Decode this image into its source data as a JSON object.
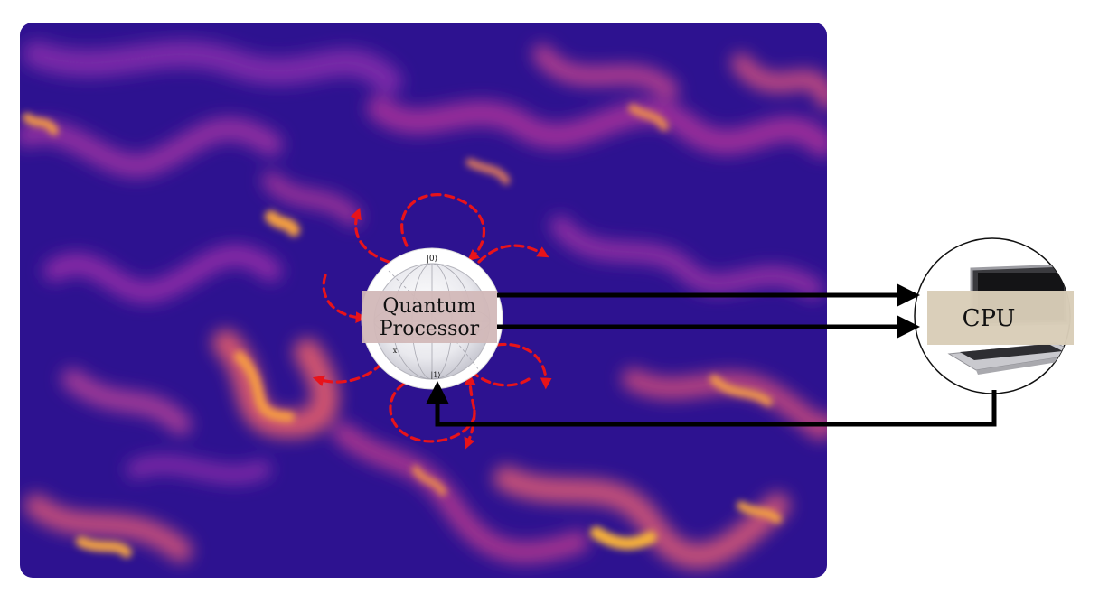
{
  "diagram": {
    "processor": {
      "label_line1": "Quantum",
      "label_line2": "Processor",
      "sphere_labels": [
        "|0⟩",
        "|1⟩",
        "x",
        "y"
      ]
    },
    "cpu": {
      "label": "CPU"
    },
    "colors": {
      "field_dark": "#2a0f8c",
      "field_mid": "#8a2aa8",
      "field_hot": "#f5a43a",
      "noise_arrows": "#e8131a",
      "connectors": "#000000",
      "label_box": "#d2b8b8",
      "cpu_box": "#d9cdb8"
    }
  }
}
